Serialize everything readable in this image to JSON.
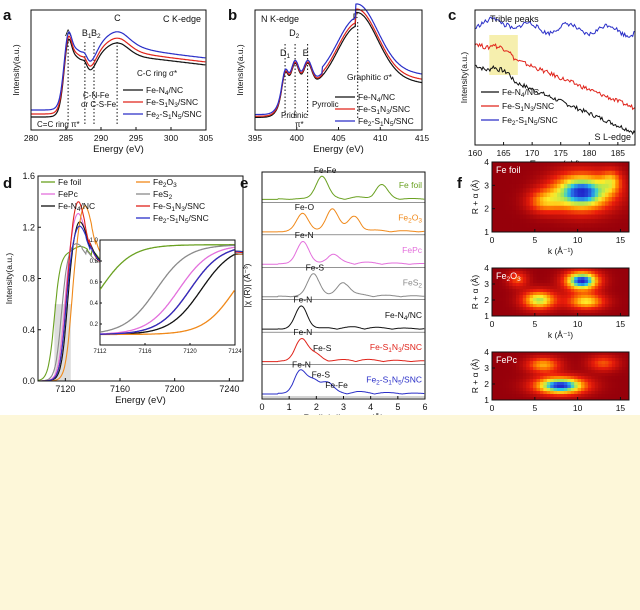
{
  "colors": {
    "black": "#111111",
    "red": "#e0241b",
    "blue": "#2a2fc8",
    "green": "#6aa121",
    "orange": "#f0891a",
    "pink": "#e36fdc",
    "gray": "#8a8a8a",
    "highlight": "#f4eb9a",
    "inset_box": "#cfcfcf"
  },
  "chart_data": [
    {
      "panel": "a",
      "type": "line",
      "title": "C K-edge",
      "xlabel": "Energy (eV)",
      "ylabel": "Intensity(a.u.)",
      "xlim": [
        280,
        305
      ],
      "xticks": [
        280,
        285,
        290,
        295,
        300,
        305
      ],
      "peak_labels": [
        {
          "text": "A",
          "x": 285.3
        },
        {
          "text": "B1",
          "x": 287.7
        },
        {
          "text": "B2",
          "x": 289.0
        },
        {
          "text": "C",
          "x": 292.3
        }
      ],
      "annotations": [
        "C-N-Fe",
        "or C-S-Fe",
        "C=C ring π*",
        "C-C ring σ*"
      ],
      "series": [
        {
          "name": "Fe-N4/NC",
          "color": "black",
          "offset": 0.0
        },
        {
          "name": "Fe-S1N3/SNC",
          "color": "red",
          "offset": 0.03
        },
        {
          "name": "Fe2-S1N5/SNC",
          "color": "blue",
          "offset": 0.07
        }
      ]
    },
    {
      "panel": "b",
      "type": "line",
      "title": "N K-edge",
      "xlabel": "Energy (eV)",
      "ylabel": "Intensity(a.u.)",
      "xlim": [
        395,
        415
      ],
      "xticks": [
        395,
        400,
        405,
        410,
        415
      ],
      "peak_labels": [
        {
          "text": "D1",
          "x": 398.6
        },
        {
          "text": "D2",
          "x": 399.8
        },
        {
          "text": "E",
          "x": 401.3
        },
        {
          "text": "F",
          "x": 407.3
        }
      ],
      "annotations": [
        "Pridinic",
        "Pyrrolic",
        "π*",
        "Graphitic σ*"
      ],
      "series": [
        {
          "name": "Fe-N4/NC",
          "color": "black",
          "offset": 0.0
        },
        {
          "name": "Fe-S1N3/SNC",
          "color": "red",
          "offset": 0.02
        },
        {
          "name": "Fe2-S1N5/SNC",
          "color": "blue",
          "offset": 0.05
        }
      ]
    },
    {
      "panel": "c",
      "type": "line",
      "title": "S L-edge",
      "xlabel": "Energy (eV)",
      "ylabel": "Intensity(a.u.)",
      "xlim": [
        160,
        188
      ],
      "xticks": [
        160,
        165,
        170,
        175,
        180,
        185
      ],
      "highlight_range": [
        162.5,
        167.5
      ],
      "annotations": [
        "Trible peaks"
      ],
      "series": [
        {
          "name": "Fe-N4/NC",
          "color": "black",
          "start": 0.6,
          "end": 0.05
        },
        {
          "name": "Fe-S1N3/SNC",
          "color": "red",
          "start": 0.78,
          "end": 0.25
        },
        {
          "name": "Fe2-S1N5/SNC",
          "color": "blue",
          "start": 0.92,
          "end": 0.88
        }
      ]
    },
    {
      "panel": "d",
      "type": "line",
      "title": "",
      "xlabel": "Energy (eV)",
      "ylabel": "Intensity(a.u.)",
      "xlim": [
        7100,
        7250
      ],
      "ylim": [
        0.0,
        1.6
      ],
      "xticks": [
        7120,
        7160,
        7200,
        7240
      ],
      "yticks": [
        0.0,
        0.4,
        0.8,
        1.2,
        1.6
      ],
      "inset": {
        "xlim": [
          7112,
          7124
        ],
        "xticks": [
          7112,
          7116,
          7120,
          7124
        ],
        "ylim": [
          0.0,
          1.0
        ],
        "yticks": [
          0.2,
          0.4,
          0.6,
          0.8,
          1.0
        ]
      },
      "series": [
        {
          "name": "Fe foil",
          "color": "green",
          "edge": 7112,
          "peak": 1.05,
          "peak_x": 7131
        },
        {
          "name": "FePc",
          "color": "pink",
          "edge": 7119,
          "peak": 1.32,
          "peak_x": 7129
        },
        {
          "name": "Fe-N4/NC",
          "color": "black",
          "edge": 7121,
          "peak": 1.26,
          "peak_x": 7130
        },
        {
          "name": "Fe2O3",
          "color": "orange",
          "edge": 7124,
          "peak": 1.38,
          "peak_x": 7134
        },
        {
          "name": "FeS2",
          "color": "gray",
          "edge": 7117,
          "peak": 1.08,
          "peak_x": 7127
        },
        {
          "name": "Fe-S1N3/SNC",
          "color": "red",
          "edge": 7120,
          "peak": 1.42,
          "peak_x": 7129
        },
        {
          "name": "Fe2-S1N5/SNC",
          "color": "blue",
          "edge": 7120,
          "peak": 1.22,
          "peak_x": 7130
        }
      ]
    },
    {
      "panel": "e",
      "type": "line",
      "title": "",
      "xlabel": "Radial distance (Å)",
      "ylabel": "|χ (R)| (Å⁻³)",
      "xlim": [
        0,
        6
      ],
      "xticks": [
        0,
        1,
        2,
        3,
        4,
        5,
        6
      ],
      "series": [
        {
          "name": "Fe foil",
          "color": "green",
          "peaks": [
            [
              2.2,
              1.0
            ],
            [
              4.4,
              0.6
            ]
          ],
          "labels": [
            "Fe-Fe"
          ]
        },
        {
          "name": "Fe2O3",
          "color": "orange",
          "peaks": [
            [
              1.5,
              0.8
            ],
            [
              2.6,
              1.0
            ],
            [
              3.4,
              0.6
            ]
          ],
          "labels": [
            "Fe-O"
          ]
        },
        {
          "name": "FePc",
          "color": "pink",
          "peaks": [
            [
              1.5,
              1.0
            ],
            [
              2.6,
              0.4
            ]
          ],
          "labels": [
            "Fe-N"
          ]
        },
        {
          "name": "FeS2",
          "color": "gray",
          "peaks": [
            [
              1.9,
              1.0
            ],
            [
              3.0,
              0.6
            ]
          ],
          "labels": [
            "Fe-S"
          ]
        },
        {
          "name": "Fe-N4/NC",
          "color": "black",
          "peaks": [
            [
              1.45,
              1.0
            ]
          ],
          "labels": [
            "Fe-N"
          ]
        },
        {
          "name": "Fe-S1N3/SNC",
          "color": "red",
          "peaks": [
            [
              1.45,
              1.0
            ],
            [
              1.95,
              0.3
            ]
          ],
          "labels": [
            "Fe-N",
            "Fe-S"
          ]
        },
        {
          "name": "Fe2-S1N5/SNC",
          "color": "blue",
          "peaks": [
            [
              1.4,
              1.0
            ],
            [
              1.9,
              0.55
            ],
            [
              2.4,
              0.45
            ]
          ],
          "labels": [
            "Fe-N",
            "Fe-S",
            "Fe-Fe"
          ]
        }
      ]
    },
    {
      "panel": "f",
      "type": "heatmap",
      "xlabel": "k (Å⁻¹)",
      "ylabel": "R + α (Å)",
      "xlim": [
        0,
        16
      ],
      "ylim": [
        1,
        4
      ],
      "xticks": [
        0,
        5,
        10,
        15
      ],
      "yticks": [
        1,
        2,
        3,
        4
      ],
      "maps": [
        {
          "name": "Fe foil",
          "blobs": [
            [
              10.5,
              2.7,
              3.5,
              0.8,
              1.0
            ],
            [
              6.0,
              2.3,
              2.0,
              0.5,
              0.4
            ],
            [
              14.0,
              3.2,
              1.2,
              0.5,
              0.35
            ]
          ]
        },
        {
          "name": "Fe2O3",
          "blobs": [
            [
              10.5,
              3.2,
              2.0,
              0.6,
              1.0
            ],
            [
              5.5,
              2.0,
              2.0,
              0.6,
              0.7
            ],
            [
              11.0,
              1.9,
              2.2,
              0.5,
              0.6
            ],
            [
              3.0,
              3.3,
              1.2,
              0.5,
              0.35
            ]
          ]
        },
        {
          "name": "FePc",
          "blobs": [
            [
              8.0,
              1.9,
              3.0,
              0.55,
              1.0
            ],
            [
              6.0,
              3.2,
              2.0,
              0.5,
              0.5
            ],
            [
              13.0,
              3.3,
              1.8,
              0.5,
              0.35
            ]
          ]
        }
      ]
    }
  ],
  "panel_labels": [
    "a",
    "b",
    "c",
    "d",
    "e",
    "f"
  ]
}
